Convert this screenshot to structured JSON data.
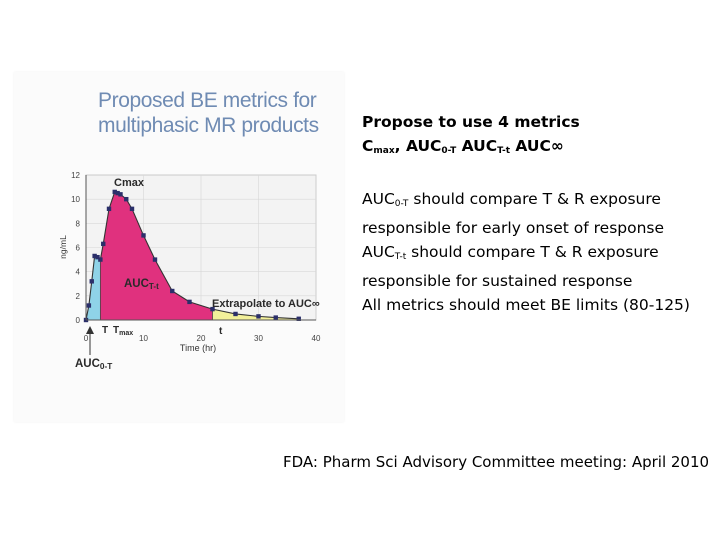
{
  "figure": {
    "title_line1": "Proposed BE metrics for",
    "title_line2": "multiphasic MR products"
  },
  "chart_data": {
    "type": "area",
    "title": "Proposed BE metrics for multiphasic MR products",
    "xlabel": "Time (hr)",
    "ylabel": "ng/mL",
    "xlim": [
      0,
      40
    ],
    "ylim": [
      0,
      12
    ],
    "x_ticks": [
      "0",
      "10",
      "20",
      "30",
      "40"
    ],
    "y_ticks": [
      "0",
      "2",
      "4",
      "6",
      "8",
      "10",
      "12"
    ],
    "grid": true,
    "series": [
      {
        "x": [
          0,
          0.5,
          1,
          1.5,
          2,
          2.5,
          3,
          4,
          5,
          5.5,
          6,
          7,
          8,
          10,
          12,
          15,
          18,
          22,
          26,
          30,
          33,
          37
        ],
        "values": [
          0,
          1.2,
          3.2,
          5.3,
          5.2,
          5.0,
          6.3,
          9.2,
          10.6,
          10.5,
          10.4,
          10.0,
          9.2,
          7.0,
          5.0,
          2.4,
          1.5,
          0.9,
          0.5,
          0.3,
          0.2,
          0.1
        ]
      }
    ],
    "shaded_regions": [
      {
        "label": "AUC0-T",
        "from": 0,
        "to": 2.5,
        "color": "#8fd3e8"
      },
      {
        "label": "AUCT-t",
        "from": 2.5,
        "to": 22,
        "color": "#e0317e"
      },
      {
        "label": "Extrapolate to AUC∞",
        "from": 22,
        "to": 37,
        "color": "#f2f09a"
      }
    ],
    "annotations": [
      {
        "text": "Cmax",
        "sub": ""
      },
      {
        "text": "AUC",
        "sub": "T-t"
      },
      {
        "text": "Extrapolate to AUC∞",
        "sub": ""
      },
      {
        "text": "T",
        "sub": ""
      },
      {
        "text": "T",
        "sub": "max"
      },
      {
        "text": "t",
        "sub": ""
      },
      {
        "text": "AUC",
        "sub": "0-T"
      }
    ]
  },
  "notes": {
    "l1": "Propose to use 4 metrics",
    "l2_a": "C",
    "l2_a_sub": "max",
    "l2_b": ", AUC",
    "l2_b_sub": "0-T",
    "l2_c": " AUC",
    "l2_c_sub": "T-t",
    "l2_d": " AUC∞",
    "l3_a": "AUC",
    "l3_sub": "0-T",
    "l3_b": " should compare T & R exposure",
    "l4": "responsible for early onset of response",
    "l5_a": "AUC",
    "l5_sub": "T-t",
    "l5_b": " should compare T & R exposure",
    "l6": "responsible for sustained response",
    "l7": "All metrics should meet BE limits (80-125)"
  },
  "source": "FDA: Pharm Sci Advisory Committee meeting: April 2010"
}
